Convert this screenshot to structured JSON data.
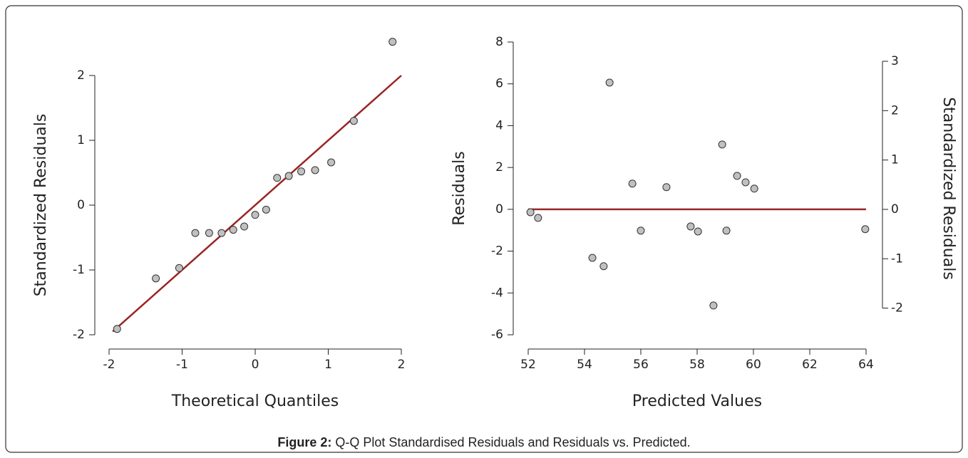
{
  "chart_data": [
    {
      "type": "scatter",
      "x_label": "Theoretical Quantiles",
      "y_label": "Standardized Residuals",
      "x": [
        -1.89,
        -1.36,
        -1.04,
        -0.82,
        -0.63,
        -0.46,
        -0.3,
        -0.15,
        0.0,
        0.15,
        0.3,
        0.46,
        0.63,
        0.82,
        1.04,
        1.35,
        1.88
      ],
      "series": [
        {
          "color": "#c0c0c0",
          "values": [
            -1.91,
            -1.13,
            -0.97,
            -0.43,
            -0.43,
            -0.43,
            -0.38,
            -0.33,
            -0.15,
            -0.07,
            0.42,
            0.45,
            0.52,
            0.54,
            0.66,
            1.3,
            2.52
          ]
        }
      ],
      "reference_line": {
        "x": [
          -1.95,
          2
        ],
        "y": [
          -1.95,
          2
        ],
        "color": "#9b2525"
      },
      "xlim": [
        -2,
        2
      ],
      "ylim": [
        -2,
        2.5
      ],
      "xticks": [
        -2,
        -1,
        0,
        1,
        2
      ],
      "yticks": [
        -2,
        -1,
        0,
        1,
        2
      ]
    },
    {
      "type": "scatter",
      "x_label": "Predicted Values",
      "y_label": "Residuals",
      "y2_label": "Standardized Residuals",
      "x": [
        52.08,
        52.35,
        54.28,
        54.68,
        54.89,
        55.7,
        56.0,
        56.91,
        57.77,
        58.03,
        58.58,
        58.89,
        59.04,
        59.42,
        59.72,
        60.03,
        63.97
      ],
      "series": [
        {
          "color": "#c0c0c0",
          "axis": "y",
          "values": [
            -0.14,
            -0.41,
            -2.32,
            -2.72,
            6.06,
            1.23,
            -1.02,
            1.06,
            -0.82,
            -1.06,
            -4.6,
            3.1,
            -1.02,
            1.6,
            1.29,
            0.99,
            -0.95
          ]
        }
      ],
      "reference_line": {
        "x": [
          52,
          64
        ],
        "y": [
          0,
          0
        ],
        "color": "#9b2525"
      },
      "xlim": [
        52,
        64
      ],
      "ylim": [
        -6,
        8
      ],
      "y2lim": [
        -2.54,
        3.39
      ],
      "xticks": [
        52,
        54,
        56,
        58,
        60,
        62,
        64
      ],
      "yticks": [
        -6,
        -4,
        -2,
        0,
        2,
        4,
        6,
        8
      ],
      "y2ticks": [
        -2,
        -1,
        0,
        1,
        2,
        3
      ]
    }
  ],
  "caption": {
    "label": "Figure 2:",
    "text": "Q-Q Plot Standardised Residuals and Residuals vs. Predicted."
  }
}
